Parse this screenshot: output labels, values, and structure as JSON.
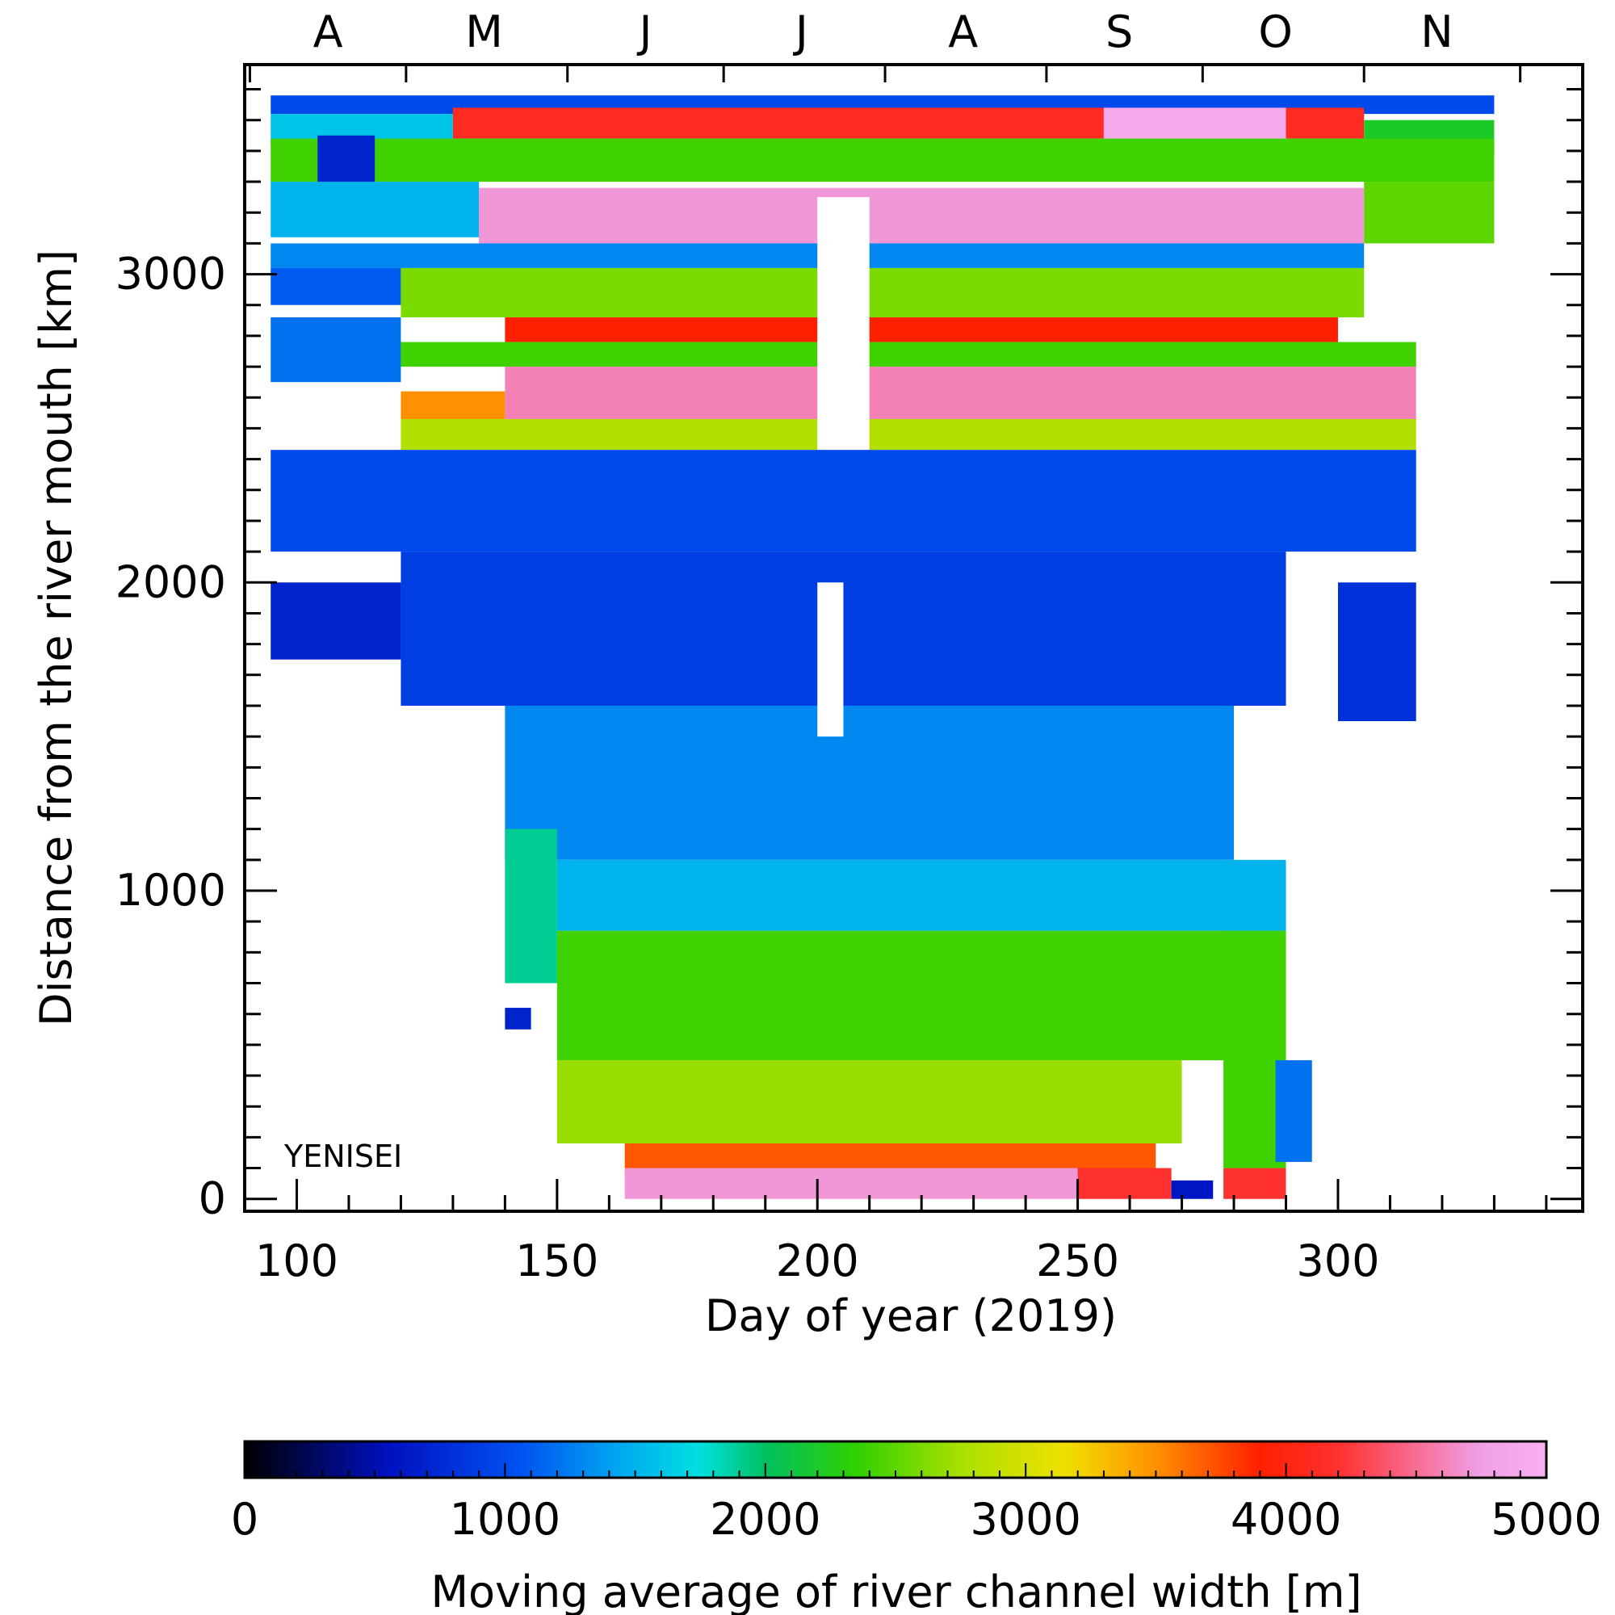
{
  "chart_data": {
    "type": "heatmap",
    "xlabel": "Day of year (2019)",
    "ylabel": "Distance from the river mouth [km]",
    "annotation": "YENISEI",
    "xlim": [
      90,
      347
    ],
    "ylim": [
      -40,
      3680
    ],
    "x_ticks": [
      100,
      150,
      200,
      250,
      300
    ],
    "y_ticks": [
      0,
      1000,
      2000,
      3000
    ],
    "month_labels": [
      "A",
      "M",
      "J",
      "J",
      "A",
      "S",
      "O",
      "N"
    ],
    "month_label_days": [
      106,
      136,
      167,
      197,
      228,
      258,
      288,
      319
    ],
    "colorbar": {
      "label": "Moving average of river channel width [m]",
      "min": 0,
      "max": 5000,
      "ticks": [
        0,
        1000,
        2000,
        3000,
        4000,
        5000
      ],
      "colors": [
        "#000000",
        "#0010c0",
        "#0050f0",
        "#00aaf0",
        "#00e0e0",
        "#00c060",
        "#30d000",
        "#a8e000",
        "#f0e000",
        "#ff9000",
        "#ff2000",
        "#ff3030",
        "#f0a0e8",
        "#f8b0f0"
      ],
      "color_stops": [
        0,
        0.11,
        0.21,
        0.29,
        0.35,
        0.4,
        0.47,
        0.55,
        0.63,
        0.7,
        0.78,
        0.84,
        0.95,
        1
      ]
    },
    "cells": [
      {
        "x0": 95,
        "x1": 330,
        "y0": 3520,
        "y1": 3580,
        "v": 1000
      },
      {
        "x0": 95,
        "x1": 130,
        "y0": 3420,
        "y1": 3520,
        "v": 1600
      },
      {
        "x0": 130,
        "x1": 305,
        "y0": 3440,
        "y1": 3540,
        "v": 4100
      },
      {
        "x0": 255,
        "x1": 290,
        "y0": 3440,
        "y1": 3540,
        "v": 4900
      },
      {
        "x0": 305,
        "x1": 330,
        "y0": 3380,
        "y1": 3500,
        "v": 2200
      },
      {
        "x0": 95,
        "x1": 330,
        "y0": 3300,
        "y1": 3440,
        "v": 2400
      },
      {
        "x0": 104,
        "x1": 115,
        "y0": 3150,
        "y1": 3450,
        "v": 700
      },
      {
        "x0": 95,
        "x1": 135,
        "y0": 3120,
        "y1": 3300,
        "v": 1500
      },
      {
        "x0": 135,
        "x1": 305,
        "y0": 3100,
        "y1": 3280,
        "v": 4700
      },
      {
        "x0": 305,
        "x1": 330,
        "y0": 3100,
        "y1": 3300,
        "v": 2500
      },
      {
        "x0": 95,
        "x1": 305,
        "y0": 3020,
        "y1": 3100,
        "v": 1300
      },
      {
        "x0": 95,
        "x1": 120,
        "y0": 2900,
        "y1": 3020,
        "v": 1100
      },
      {
        "x0": 120,
        "x1": 305,
        "y0": 2860,
        "y1": 3020,
        "v": 2600
      },
      {
        "x0": 140,
        "x1": 300,
        "y0": 2780,
        "y1": 2860,
        "v": 3900
      },
      {
        "x0": 95,
        "x1": 120,
        "y0": 2650,
        "y1": 2860,
        "v": 1200
      },
      {
        "x0": 120,
        "x1": 315,
        "y0": 2700,
        "y1": 2780,
        "v": 2400
      },
      {
        "x0": 140,
        "x1": 315,
        "y0": 2530,
        "y1": 2700,
        "v": 4600
      },
      {
        "x0": 120,
        "x1": 140,
        "y0": 2530,
        "y1": 2620,
        "v": 3500
      },
      {
        "x0": 120,
        "x1": 315,
        "y0": 2430,
        "y1": 2530,
        "v": 2800
      },
      {
        "x0": 200,
        "x1": 210,
        "y0": 2430,
        "y1": 3250,
        "v": -1
      },
      {
        "x0": 95,
        "x1": 315,
        "y0": 2100,
        "y1": 2430,
        "v": 1000
      },
      {
        "x0": 95,
        "x1": 120,
        "y0": 1750,
        "y1": 2000,
        "v": 700
      },
      {
        "x0": 120,
        "x1": 290,
        "y0": 1600,
        "y1": 2100,
        "v": 900
      },
      {
        "x0": 300,
        "x1": 315,
        "y0": 1550,
        "y1": 2000,
        "v": 800
      },
      {
        "x0": 140,
        "x1": 280,
        "y0": 1100,
        "y1": 1600,
        "v": 1300
      },
      {
        "x0": 200,
        "x1": 205,
        "y0": 1500,
        "y1": 2000,
        "v": -1
      },
      {
        "x0": 150,
        "x1": 290,
        "y0": 870,
        "y1": 1100,
        "v": 1500
      },
      {
        "x0": 140,
        "x1": 150,
        "y0": 700,
        "y1": 1200,
        "v": 1900
      },
      {
        "x0": 150,
        "x1": 290,
        "y0": 450,
        "y1": 870,
        "v": 2400
      },
      {
        "x0": 140,
        "x1": 145,
        "y0": 550,
        "y1": 620,
        "v": 700
      },
      {
        "x0": 150,
        "x1": 270,
        "y0": 180,
        "y1": 450,
        "v": 2700
      },
      {
        "x0": 163,
        "x1": 265,
        "y0": 80,
        "y1": 180,
        "v": 3700
      },
      {
        "x0": 163,
        "x1": 250,
        "y0": 0,
        "y1": 100,
        "v": 4700
      },
      {
        "x0": 250,
        "x1": 268,
        "y0": 0,
        "y1": 100,
        "v": 4200
      },
      {
        "x0": 278,
        "x1": 290,
        "y0": 0,
        "y1": 100,
        "v": 4200
      },
      {
        "x0": 278,
        "x1": 290,
        "y0": 100,
        "y1": 870,
        "v": 2400
      },
      {
        "x0": 288,
        "x1": 295,
        "y0": 120,
        "y1": 450,
        "v": 1200
      },
      {
        "x0": 268,
        "x1": 276,
        "y0": 0,
        "y1": 60,
        "v": 600
      }
    ]
  }
}
